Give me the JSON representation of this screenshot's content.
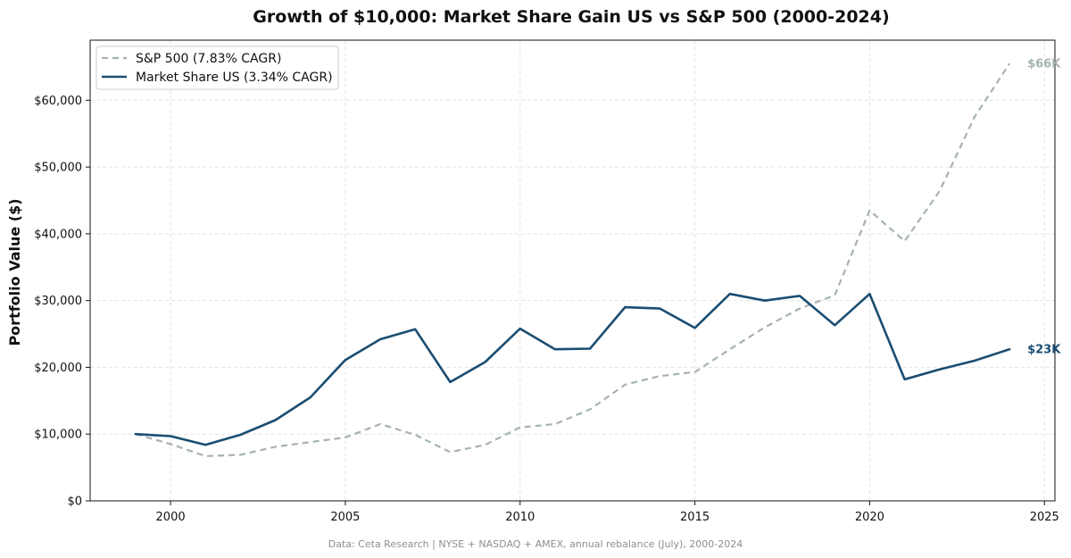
{
  "chart_data": {
    "type": "line",
    "title": "Growth of $10,000: Market Share Gain US vs S&P 500 (2000-2024)",
    "xlabel": "",
    "ylabel": "Portfolio Value ($)",
    "xlim": [
      1997.7,
      2025.3
    ],
    "ylim": [
      0,
      69000
    ],
    "x_ticks": [
      2000,
      2005,
      2010,
      2015,
      2020,
      2025
    ],
    "y_ticks": [
      0,
      10000,
      20000,
      30000,
      40000,
      50000,
      60000
    ],
    "y_tick_labels": [
      "$0",
      "$10,000",
      "$20,000",
      "$30,000",
      "$40,000",
      "$50,000",
      "$60,000"
    ],
    "grid": true,
    "legend_position": "top-left",
    "x": [
      1999,
      2000,
      2001,
      2002,
      2003,
      2004,
      2005,
      2006,
      2007,
      2008,
      2009,
      2010,
      2011,
      2012,
      2013,
      2014,
      2015,
      2016,
      2017,
      2018,
      2019,
      2020,
      2021,
      2022,
      2023,
      2024
    ],
    "series": [
      {
        "name": "S&P 500 (7.83% CAGR)",
        "color": "#a5b3b0",
        "dashed": true,
        "end_label": "$66K",
        "values": [
          10000,
          8500,
          6700,
          6900,
          8100,
          8800,
          9500,
          11500,
          9900,
          7300,
          8400,
          11000,
          11500,
          13700,
          17400,
          18700,
          19300,
          22700,
          26000,
          28800,
          30800,
          43500,
          38900,
          46400,
          57500,
          65500
        ]
      },
      {
        "name": "Market Share US (3.34% CAGR)",
        "color": "#1b4d72",
        "dashed": false,
        "end_label": "$23K",
        "values": [
          10000,
          9700,
          8400,
          9900,
          12100,
          15500,
          21100,
          24200,
          25700,
          17800,
          20800,
          25800,
          22700,
          22800,
          29000,
          28800,
          25900,
          31000,
          30000,
          30700,
          26300,
          31000,
          18200,
          19700,
          21000,
          22700
        ]
      }
    ],
    "source_note": "Data: Ceta Research | NYSE + NASDAQ + AMEX, annual rebalance (July), 2000-2024"
  }
}
